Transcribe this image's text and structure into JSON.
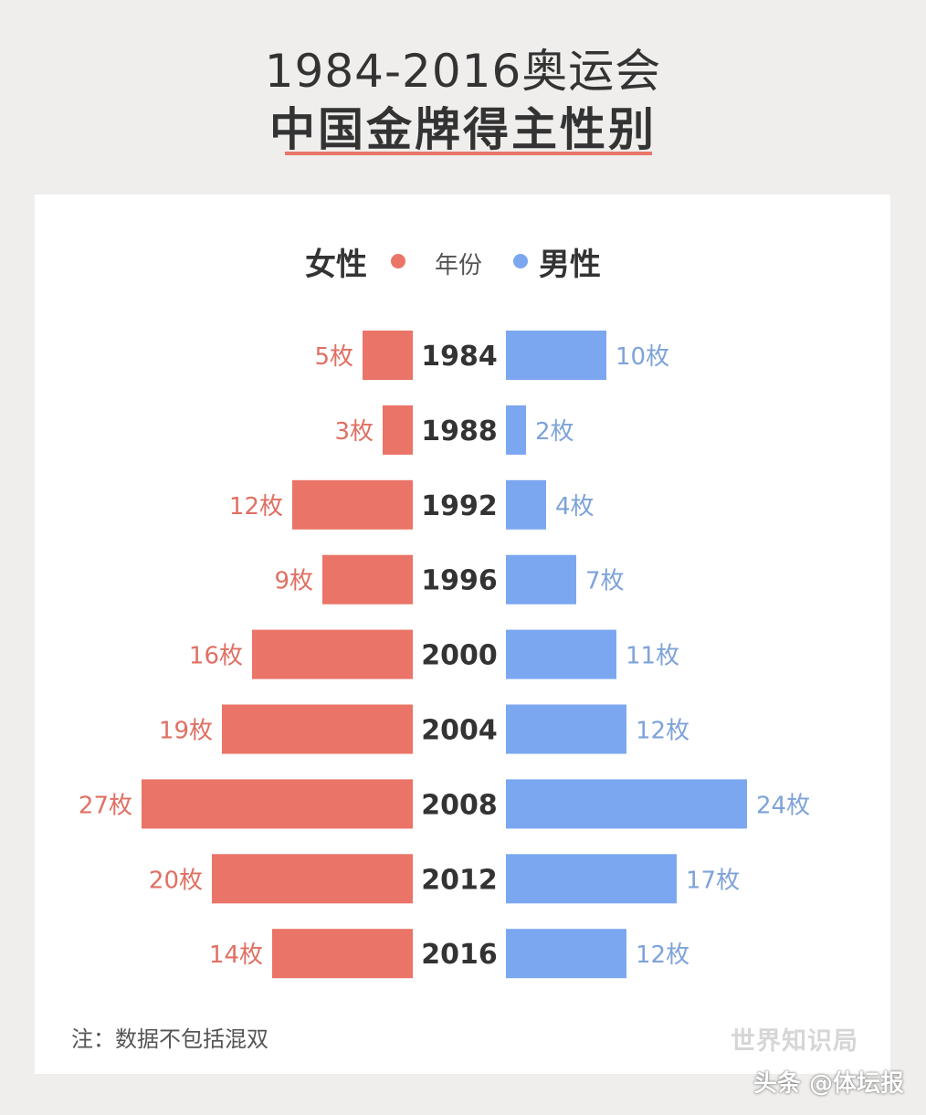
{
  "title": {
    "line1": "1984-2016奥运会",
    "line2": "中国金牌得主性别"
  },
  "legend": {
    "female": "女性",
    "year": "年份",
    "male": "男性"
  },
  "colors": {
    "female": "#ea7467",
    "male": "#7ba7f0",
    "female_text": "#e07063",
    "male_text": "#7ea3d8",
    "year_text": "#333333",
    "underline": "#e8766a"
  },
  "note": "注：数据不包括混双",
  "brand": "世界知识局",
  "watermark": "头条 @体坛报",
  "chart_data": {
    "type": "bar",
    "orientation": "horizontal-butterfly",
    "categories": [
      "1984",
      "1988",
      "1992",
      "1996",
      "2000",
      "2004",
      "2008",
      "2012",
      "2016"
    ],
    "unit": "枚",
    "series": [
      {
        "name": "女性",
        "values": [
          5,
          3,
          12,
          9,
          16,
          19,
          27,
          20,
          14
        ]
      },
      {
        "name": "男性",
        "values": [
          10,
          2,
          4,
          7,
          11,
          12,
          24,
          17,
          12
        ]
      }
    ]
  }
}
